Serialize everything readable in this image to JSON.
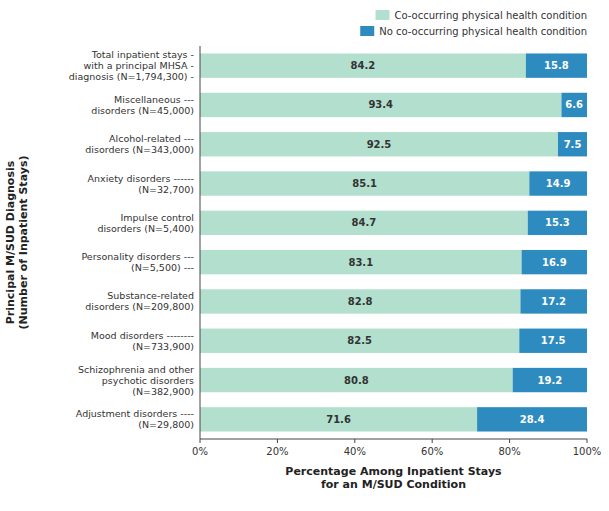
{
  "chart_data": {
    "type": "bar",
    "orientation": "horizontal",
    "stacked": true,
    "data_labels": true,
    "grid": false,
    "legend": "upper right",
    "categories": [
      "Total inpatient stays -\nwith a principal MHSA -\ndiagnosis (N=1,794,300) -",
      "Miscellaneous ---\ndisorders (N=45,000)",
      "Alcohol-related ---\ndisorders (N=343,000)",
      "Anxiety disorders ------\n(N=32,700)",
      "Impulse control\ndisorders (N=5,400)",
      "Personality disorders ---\n(N=5,500) ---",
      "Substance-related\ndisorders (N=209,800)",
      "Mood disorders --------\n(N=733,900)",
      "Schizophrenia and other\npsychotic disorders\n(N=382,900)",
      "Adjustment disorders ----\n(N=29,800)"
    ],
    "series": [
      {
        "name": "Co-occurring physical health condition",
        "color": "#b2dfce",
        "values": [
          84.2,
          93.4,
          92.5,
          85.1,
          84.7,
          83.1,
          82.8,
          82.5,
          80.8,
          71.6
        ]
      },
      {
        "name": "No co-occurring physical health condition",
        "color": "#2e8bbf",
        "values": [
          15.8,
          6.6,
          7.5,
          14.9,
          15.3,
          16.9,
          17.2,
          17.5,
          19.2,
          28.4
        ]
      }
    ],
    "xlabel": "Percentage Among Inpatient Stays\nfor an M/SUD Condition",
    "ylabel": "Principal M/SUD Diagnosis\n(Number of Inpatient Stays)",
    "xlim": [
      0,
      100
    ],
    "xticks": [
      {
        "value": 0,
        "label": "0%"
      },
      {
        "value": 20,
        "label": "20%"
      },
      {
        "value": 40,
        "label": "40%"
      },
      {
        "value": 60,
        "label": "60%"
      },
      {
        "value": 80,
        "label": "80%"
      },
      {
        "value": 100,
        "label": "100%"
      }
    ]
  }
}
